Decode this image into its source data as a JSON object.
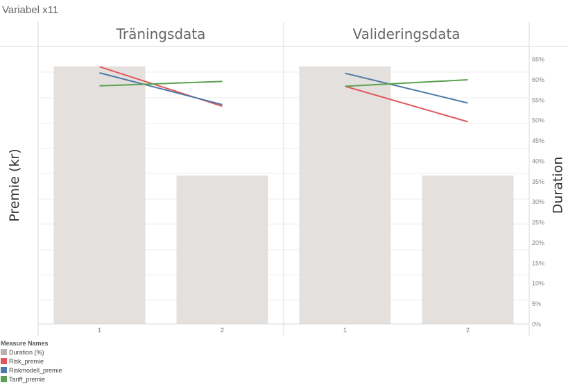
{
  "page_title": "Variabel x11",
  "legend": {
    "title": "Measure Names",
    "items": [
      {
        "label": "Duration (%)",
        "color": "#bab0ac"
      },
      {
        "label": "Risk_premie",
        "color": "#e15759"
      },
      {
        "label": "Riskmodell_premie",
        "color": "#4e79a7"
      },
      {
        "label": "Tariff_premie",
        "color": "#59a14f"
      }
    ]
  },
  "chart_data": {
    "type": "bar",
    "y_left_label": "Premie (kr)",
    "y_right_label": "Duration",
    "y_right_ticks": [
      "0%",
      "5%",
      "10%",
      "15%",
      "20%",
      "25%",
      "30%",
      "35%",
      "40%",
      "45%",
      "50%",
      "55%",
      "60%",
      "65%"
    ],
    "y_right_range": [
      0,
      0.65
    ],
    "grid": true,
    "legend_position": "bottom-left",
    "panels": [
      {
        "title": "Träningsdata",
        "categories": [
          "1",
          "2"
        ],
        "duration": [
          0.632,
          0.364
        ],
        "lines": [
          {
            "name": "Risk_premie",
            "color": "#e15759",
            "values": [
              0.631,
              0.534
            ]
          },
          {
            "name": "Riskmodell_premie",
            "color": "#4e79a7",
            "values": [
              0.616,
              0.538
            ]
          },
          {
            "name": "Tariff_premie",
            "color": "#59a14f",
            "values": [
              0.584,
              0.595
            ]
          }
        ]
      },
      {
        "title": "Valideringsdata",
        "categories": [
          "1",
          "2"
        ],
        "duration": [
          0.632,
          0.364
        ],
        "lines": [
          {
            "name": "Risk_premie",
            "color": "#e15759",
            "values": [
              0.583,
              0.496
            ]
          },
          {
            "name": "Riskmodell_premie",
            "color": "#4e79a7",
            "values": [
              0.615,
              0.542
            ]
          },
          {
            "name": "Tariff_premie",
            "color": "#59a14f",
            "values": [
              0.583,
              0.599
            ]
          }
        ]
      }
    ]
  }
}
